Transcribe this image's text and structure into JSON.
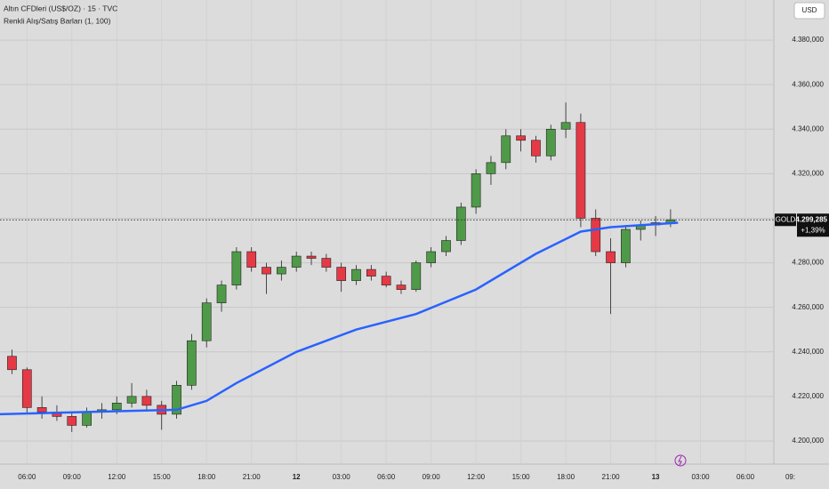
{
  "chart_data": {
    "type": "candlestick",
    "title": "Altın CFDleri (US$/OZ) · 15 · TVC",
    "subtitle": "Renkli Alış/Satış Barları (1, 100)",
    "currency": "USD",
    "symbol": "GOLD",
    "last_price": 4299285,
    "last_price_label": "4.299,285",
    "change_label": "+1,39%",
    "up_color": "#4f9a48",
    "down_color": "#e63946",
    "grid": true,
    "x": [
      5,
      6,
      7,
      8,
      9,
      10,
      11,
      12,
      13,
      14,
      15,
      16,
      17,
      18,
      19,
      20,
      21,
      22,
      23,
      24,
      25,
      26,
      27,
      28,
      29,
      30,
      31,
      32,
      33,
      34,
      35,
      36,
      37,
      38,
      39,
      40,
      41,
      42,
      43,
      44,
      45,
      46,
      47,
      48,
      49
    ],
    "open": [
      4238000,
      4232000,
      4215000,
      4213000,
      4211000,
      4207000,
      4213000,
      4214000,
      4217000,
      4220000,
      4216000,
      4212000,
      4225000,
      4245000,
      4262000,
      4270000,
      4285000,
      4278000,
      4275000,
      4278000,
      4283000,
      4282000,
      4278000,
      4272000,
      4277000,
      4274000,
      4270000,
      4268000,
      4280000,
      4285000,
      4290000,
      4305000,
      4320000,
      4325000,
      4337000,
      4335000,
      4328000,
      4340000,
      4343000,
      4300000,
      4285000,
      4280000,
      4295000,
      4297000,
      4298000
    ],
    "high": [
      4241000,
      4233000,
      4220000,
      4216000,
      4213000,
      4215000,
      4217000,
      4220000,
      4226000,
      4223000,
      4218000,
      4227000,
      4248000,
      4264000,
      4272000,
      4287000,
      4287000,
      4280000,
      4281000,
      4285000,
      4285000,
      4284000,
      4280000,
      4279000,
      4279000,
      4276000,
      4272000,
      4281000,
      4287000,
      4292000,
      4307000,
      4322000,
      4328000,
      4340000,
      4340000,
      4337000,
      4342000,
      4352000,
      4347000,
      4304000,
      4291000,
      4297000,
      4299000,
      4301000,
      4304000
    ],
    "low": [
      4230000,
      4212000,
      4210000,
      4209000,
      4204000,
      4206000,
      4210000,
      4212000,
      4215000,
      4214000,
      4205000,
      4210000,
      4223000,
      4242000,
      4258000,
      4268000,
      4276000,
      4266000,
      4272000,
      4276000,
      4279000,
      4276000,
      4267000,
      4270000,
      4272000,
      4269000,
      4266000,
      4267000,
      4278000,
      4283000,
      4288000,
      4302000,
      4315000,
      4322000,
      4330000,
      4325000,
      4326000,
      4336000,
      4296000,
      4283000,
      4257000,
      4278000,
      4290000,
      4292000,
      4296000
    ],
    "close": [
      4232000,
      4215000,
      4213000,
      4211000,
      4207000,
      4213000,
      4214000,
      4217000,
      4220000,
      4216000,
      4212000,
      4225000,
      4245000,
      4262000,
      4270000,
      4285000,
      4278000,
      4275000,
      4278000,
      4283000,
      4282000,
      4278000,
      4272000,
      4277000,
      4274000,
      4270000,
      4268000,
      4280000,
      4285000,
      4290000,
      4305000,
      4320000,
      4325000,
      4337000,
      4335000,
      4328000,
      4340000,
      4343000,
      4300000,
      4285000,
      4280000,
      4295000,
      4297000,
      4298000,
      4299285
    ],
    "ma": {
      "color": "#2962ff",
      "x": [
        4.2,
        10,
        16,
        18,
        20,
        24,
        28,
        32,
        36,
        40,
        43,
        45,
        49.5
      ],
      "values": [
        4212000,
        4213000,
        4214000,
        4218000,
        4226000,
        4240000,
        4250000,
        4257000,
        4268000,
        4284000,
        4294000,
        4296000,
        4298000
      ]
    },
    "xlim": [
      4.2,
      55.9
    ],
    "ylim": [
      4189600,
      4398000
    ],
    "xticks": [
      {
        "value": 6,
        "label": "06:00"
      },
      {
        "value": 9,
        "label": "09:00"
      },
      {
        "value": 12,
        "label": "12:00"
      },
      {
        "value": 15,
        "label": "15:00"
      },
      {
        "value": 18,
        "label": "18:00"
      },
      {
        "value": 21,
        "label": "21:00"
      },
      {
        "value": 24,
        "label": "12"
      },
      {
        "value": 27,
        "label": "03:00"
      },
      {
        "value": 30,
        "label": "06:00"
      },
      {
        "value": 33,
        "label": "09:00"
      },
      {
        "value": 36,
        "label": "12:00"
      },
      {
        "value": 39,
        "label": "15:00"
      },
      {
        "value": 42,
        "label": "18:00"
      },
      {
        "value": 45,
        "label": "21:00"
      },
      {
        "value": 48,
        "label": "13"
      },
      {
        "value": 51,
        "label": "03:00"
      },
      {
        "value": 54,
        "label": "06:00"
      },
      {
        "value": 57,
        "label": "09:"
      }
    ],
    "yticks": [
      {
        "value": 4200000,
        "label": "4.200,000"
      },
      {
        "value": 4220000,
        "label": "4.220,000"
      },
      {
        "value": 4240000,
        "label": "4.240,000"
      },
      {
        "value": 4260000,
        "label": "4.260,000"
      },
      {
        "value": 4280000,
        "label": "4.280,000"
      },
      {
        "value": 4300000,
        "label": "4.300,000"
      },
      {
        "value": 4320000,
        "label": "4.320,000"
      },
      {
        "value": 4340000,
        "label": "4.340,000"
      },
      {
        "value": 4360000,
        "label": "4.360,000"
      },
      {
        "value": 4380000,
        "label": "4.380,000"
      }
    ]
  }
}
